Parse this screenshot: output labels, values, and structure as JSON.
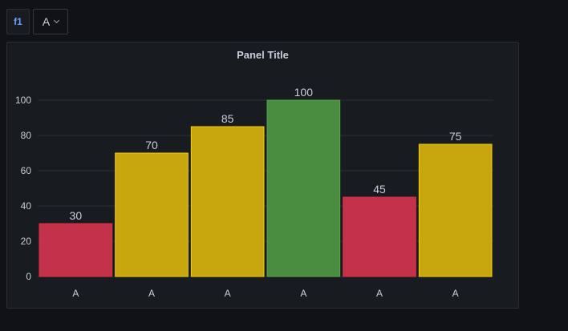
{
  "variables": {
    "label": "f1",
    "selected": "A"
  },
  "panel": {
    "title": "Panel Title"
  },
  "colors": {
    "red": "#c4314b",
    "yellow": "#c8a60e",
    "green": "#4a8c40",
    "red_border": "#e02f44",
    "yellow_border": "#f2cc0c",
    "green_border": "#56a64b",
    "grid": "#2c2f35",
    "tick_text": "#ccccdc"
  },
  "chart_data": {
    "type": "bar",
    "title": "Panel Title",
    "categories": [
      "A",
      "A",
      "A",
      "A",
      "A",
      "A"
    ],
    "values": [
      30,
      70,
      85,
      100,
      45,
      75
    ],
    "bar_colors": [
      "red",
      "yellow",
      "yellow",
      "green",
      "red",
      "yellow"
    ],
    "xlabel": "",
    "ylabel": "",
    "ylim": [
      0,
      100
    ],
    "yticks": [
      0,
      20,
      40,
      60,
      80,
      100
    ],
    "grid": true,
    "legend": false,
    "show_values": true
  }
}
